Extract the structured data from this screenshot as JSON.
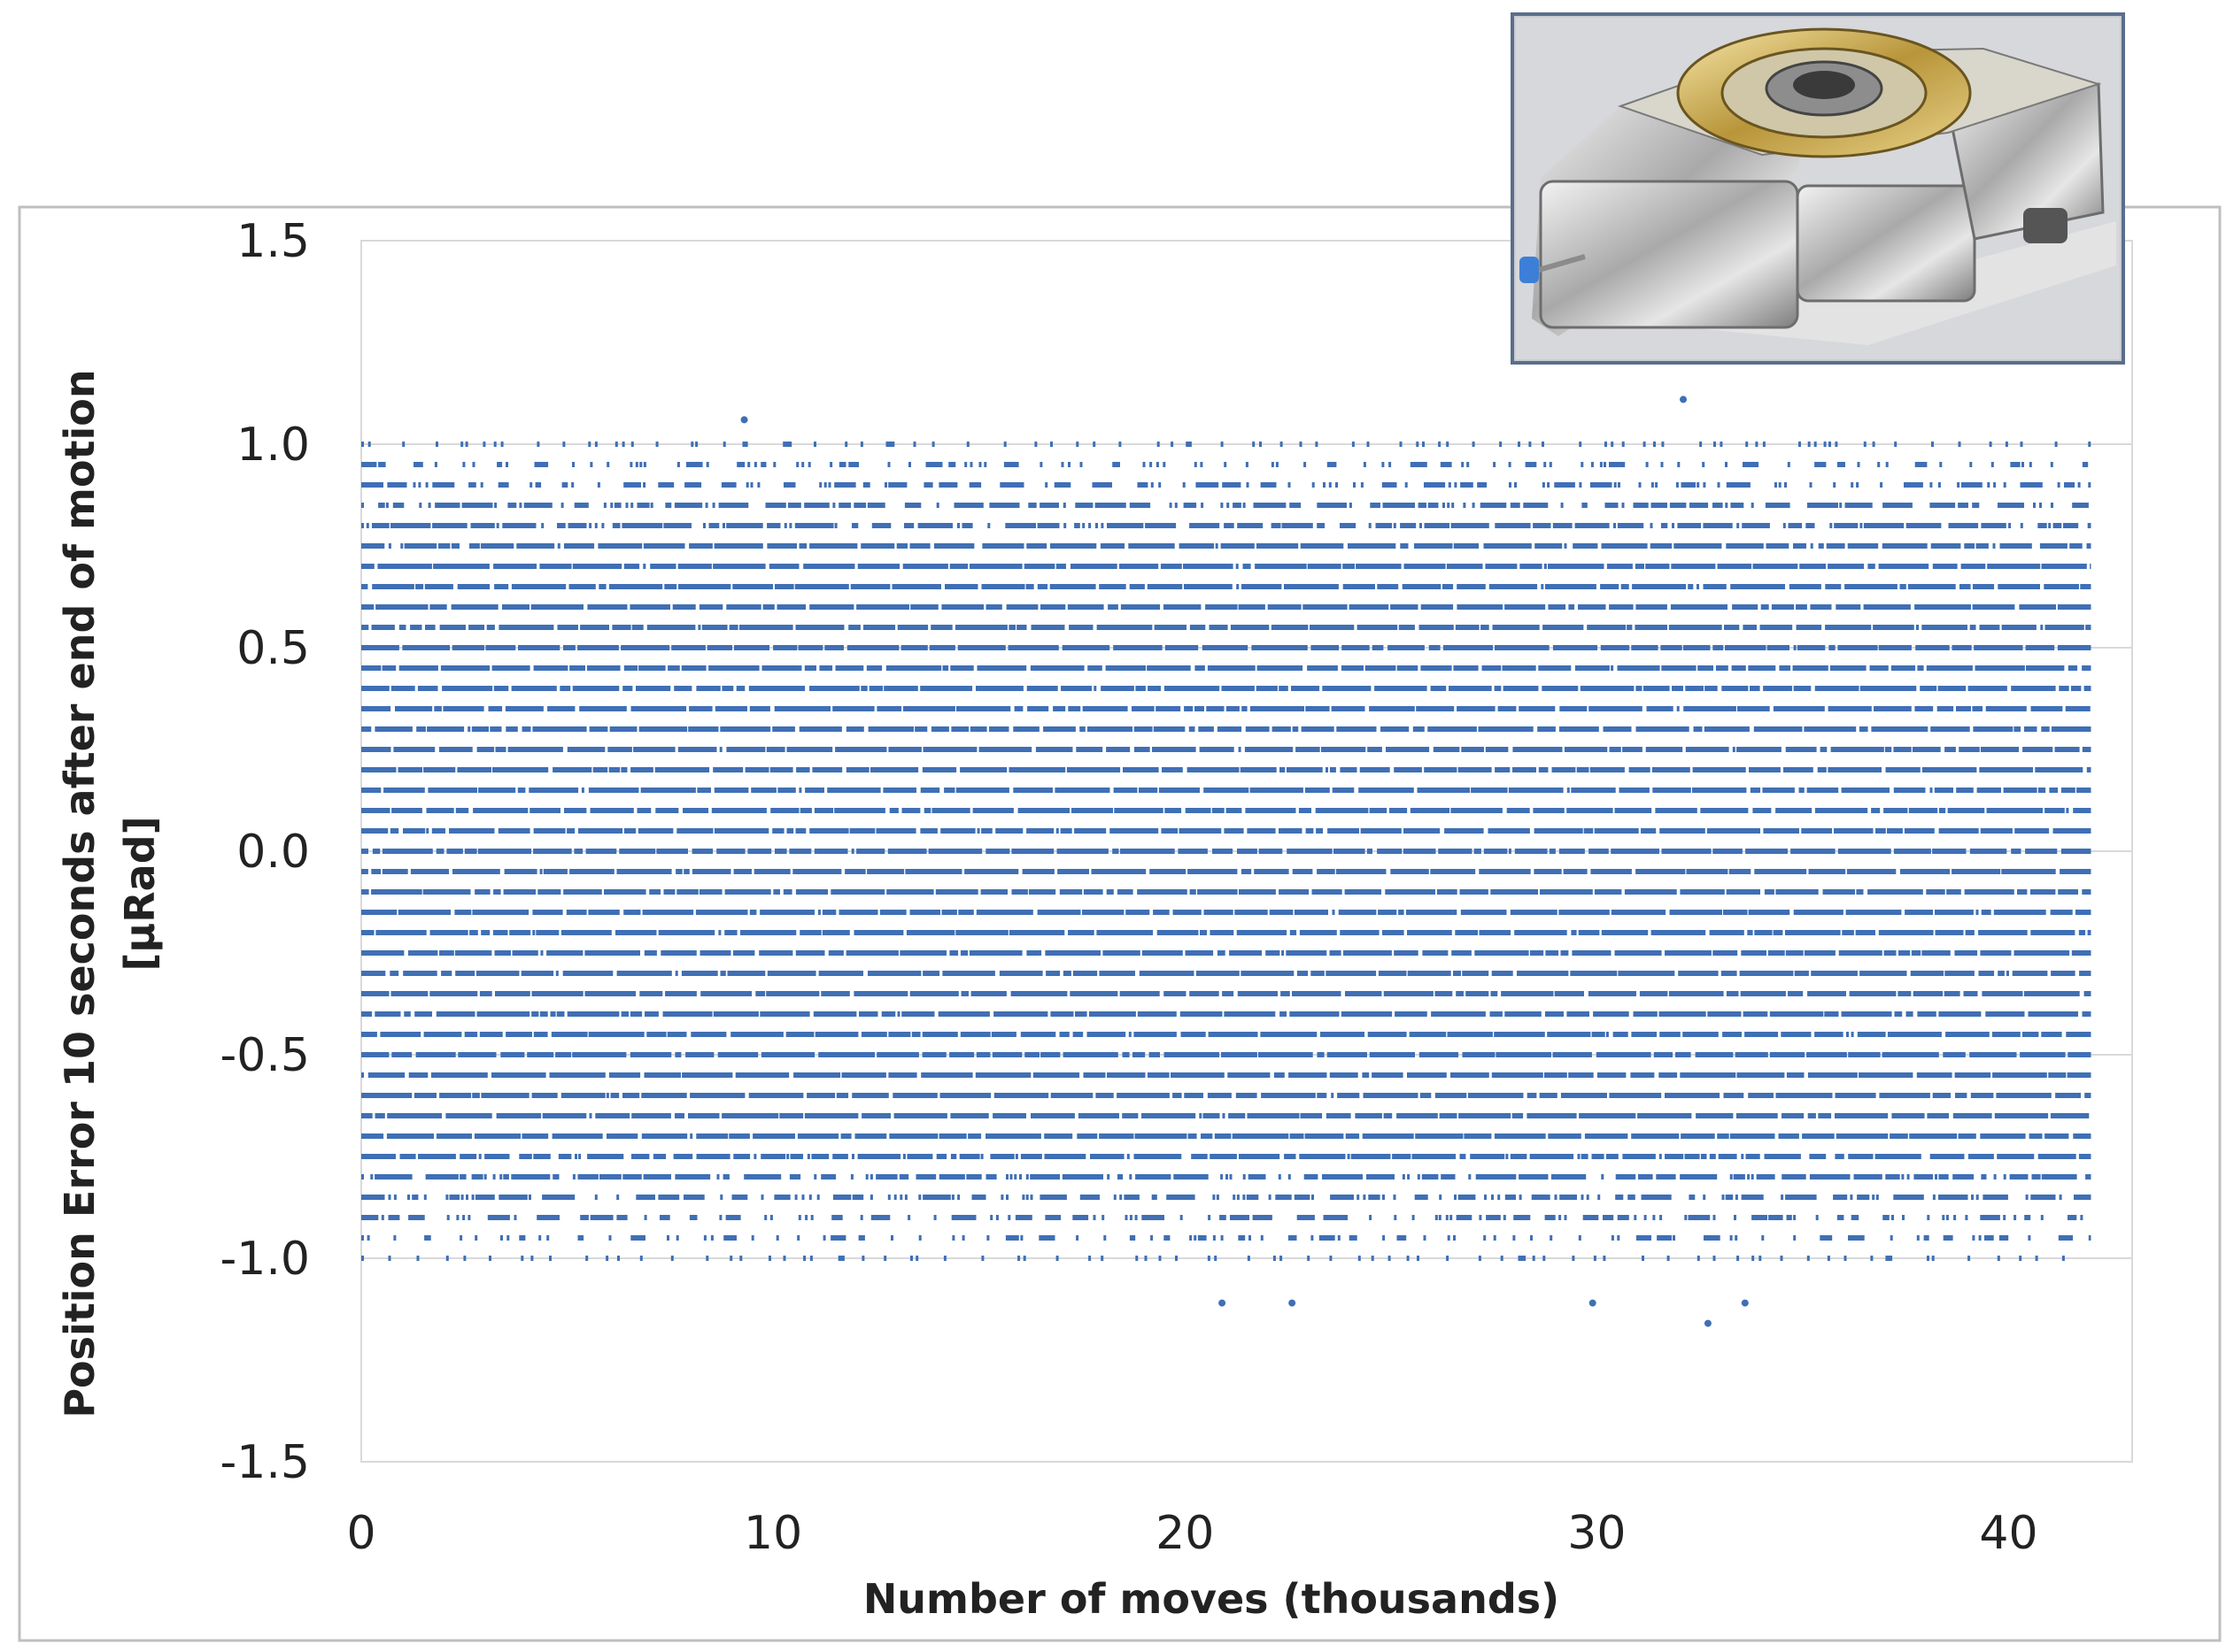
{
  "chart_data": {
    "type": "scatter",
    "title": "",
    "xlabel": "Number of moves (thousands)",
    "ylabel_line1": "Position Error 10 seconds after end of motion",
    "ylabel_line2": "[µRad]",
    "xlim": [
      0,
      43
    ],
    "ylim": [
      -1.5,
      1.5
    ],
    "x_ticks": [
      0,
      10,
      20,
      30,
      40
    ],
    "x_tick_labels": [
      "0",
      "10",
      "20",
      "30",
      "40"
    ],
    "y_ticks": [
      1.5,
      1.0,
      0.5,
      0.0,
      -0.5,
      -1.0,
      -1.5
    ],
    "y_tick_labels": [
      "1.5",
      "1.0",
      "0.5",
      "0.0",
      "-0.5",
      "-1.0",
      "-1.5"
    ],
    "grid": "horizontal",
    "legend": "none",
    "data_x_range": [
      0,
      42
    ],
    "quantization_step": 0.05,
    "data_y_range": [
      -1.0,
      1.0
    ],
    "outliers": [
      {
        "x": 9.3,
        "y": 1.06
      },
      {
        "x": 32.1,
        "y": 1.11
      },
      {
        "x": 20.9,
        "y": -1.11
      },
      {
        "x": 22.6,
        "y": -1.11
      },
      {
        "x": 29.9,
        "y": -1.11
      },
      {
        "x": 33.6,
        "y": -1.11
      },
      {
        "x": 32.7,
        "y": -1.16
      }
    ],
    "point_color": "#3f6fb5",
    "inset": "photo-of-rotary-stage-mechanism"
  }
}
